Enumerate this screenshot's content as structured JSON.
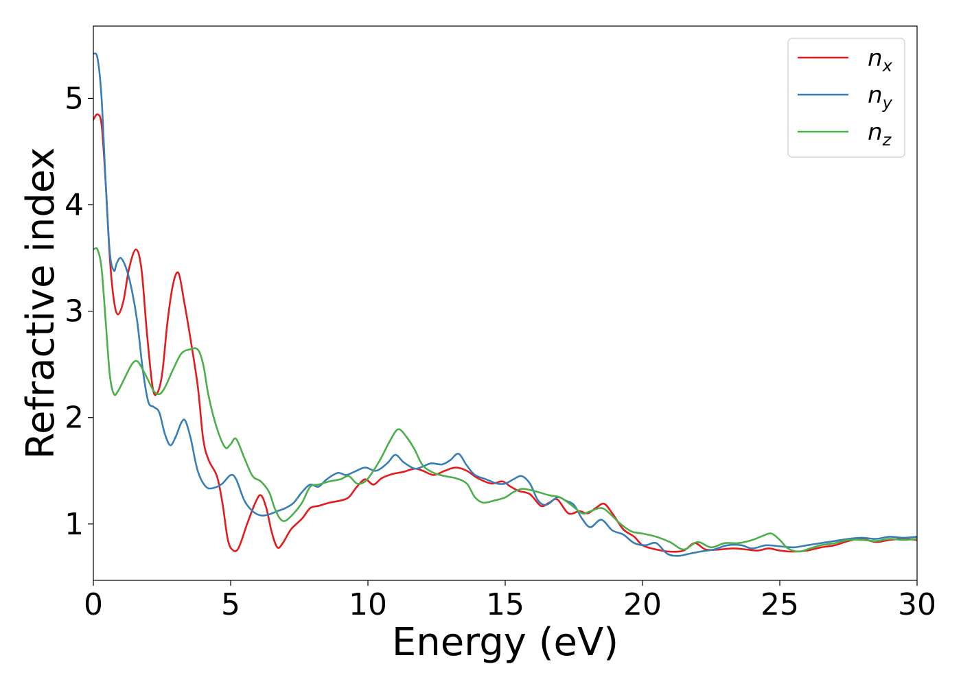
{
  "chart_data": {
    "type": "line",
    "title": "",
    "xlabel": "Energy (eV)",
    "ylabel": "Refractive index",
    "xlim": [
      0,
      30
    ],
    "ylim": [
      0.47,
      5.68
    ],
    "xticks": [
      0,
      5,
      10,
      15,
      20,
      25,
      30
    ],
    "yticks": [
      1,
      2,
      3,
      4,
      5
    ],
    "grid": false,
    "legend_position": "top-right",
    "series": [
      {
        "name": "n",
        "subscript": "x",
        "color": "#e41a1c",
        "points": [
          [
            0,
            4.8
          ],
          [
            0.15,
            4.85
          ],
          [
            0.3,
            4.75
          ],
          [
            0.45,
            4.2
          ],
          [
            0.6,
            3.5
          ],
          [
            0.75,
            3.1
          ],
          [
            0.9,
            2.97
          ],
          [
            1.1,
            3.1
          ],
          [
            1.3,
            3.4
          ],
          [
            1.55,
            3.58
          ],
          [
            1.75,
            3.4
          ],
          [
            1.95,
            2.8
          ],
          [
            2.15,
            2.3
          ],
          [
            2.3,
            2.22
          ],
          [
            2.5,
            2.4
          ],
          [
            2.7,
            2.9
          ],
          [
            2.9,
            3.25
          ],
          [
            3.1,
            3.36
          ],
          [
            3.3,
            3.1
          ],
          [
            3.5,
            2.8
          ],
          [
            3.8,
            2.3
          ],
          [
            4.0,
            1.8
          ],
          [
            4.2,
            1.6
          ],
          [
            4.5,
            1.45
          ],
          [
            4.7,
            1.2
          ],
          [
            4.9,
            0.85
          ],
          [
            5.1,
            0.75
          ],
          [
            5.3,
            0.78
          ],
          [
            5.6,
            1.0
          ],
          [
            5.9,
            1.2
          ],
          [
            6.1,
            1.27
          ],
          [
            6.3,
            1.15
          ],
          [
            6.5,
            0.92
          ],
          [
            6.7,
            0.78
          ],
          [
            6.9,
            0.82
          ],
          [
            7.2,
            0.95
          ],
          [
            7.6,
            1.05
          ],
          [
            7.9,
            1.15
          ],
          [
            8.2,
            1.17
          ],
          [
            8.6,
            1.2
          ],
          [
            9.0,
            1.22
          ],
          [
            9.3,
            1.25
          ],
          [
            9.6,
            1.35
          ],
          [
            9.9,
            1.42
          ],
          [
            10.2,
            1.37
          ],
          [
            10.5,
            1.43
          ],
          [
            10.9,
            1.47
          ],
          [
            11.3,
            1.49
          ],
          [
            11.7,
            1.52
          ],
          [
            12.0,
            1.5
          ],
          [
            12.4,
            1.46
          ],
          [
            12.8,
            1.5
          ],
          [
            13.2,
            1.53
          ],
          [
            13.6,
            1.5
          ],
          [
            14.0,
            1.43
          ],
          [
            14.5,
            1.38
          ],
          [
            14.9,
            1.4
          ],
          [
            15.2,
            1.35
          ],
          [
            15.5,
            1.31
          ],
          [
            15.9,
            1.28
          ],
          [
            16.3,
            1.17
          ],
          [
            16.6,
            1.2
          ],
          [
            16.9,
            1.23
          ],
          [
            17.3,
            1.1
          ],
          [
            17.7,
            1.12
          ],
          [
            18.0,
            1.1
          ],
          [
            18.3,
            1.15
          ],
          [
            18.6,
            1.19
          ],
          [
            18.9,
            1.1
          ],
          [
            19.3,
            0.95
          ],
          [
            19.7,
            0.88
          ],
          [
            20.0,
            0.8
          ],
          [
            20.5,
            0.76
          ],
          [
            21.0,
            0.74
          ],
          [
            21.5,
            0.75
          ],
          [
            21.9,
            0.82
          ],
          [
            22.3,
            0.76
          ],
          [
            22.8,
            0.76
          ],
          [
            23.3,
            0.77
          ],
          [
            23.8,
            0.76
          ],
          [
            24.2,
            0.75
          ],
          [
            24.6,
            0.77
          ],
          [
            25.0,
            0.75
          ],
          [
            25.5,
            0.74
          ],
          [
            26.0,
            0.75
          ],
          [
            26.5,
            0.78
          ],
          [
            27.0,
            0.8
          ],
          [
            27.5,
            0.84
          ],
          [
            28.0,
            0.86
          ],
          [
            28.5,
            0.83
          ],
          [
            29.0,
            0.85
          ],
          [
            29.5,
            0.86
          ],
          [
            30.0,
            0.85
          ]
        ]
      },
      {
        "name": "n",
        "subscript": "y",
        "color": "#377eb8",
        "points": [
          [
            0,
            5.42
          ],
          [
            0.15,
            5.38
          ],
          [
            0.3,
            5.0
          ],
          [
            0.45,
            4.2
          ],
          [
            0.6,
            3.55
          ],
          [
            0.75,
            3.38
          ],
          [
            0.85,
            3.45
          ],
          [
            1.0,
            3.5
          ],
          [
            1.2,
            3.4
          ],
          [
            1.4,
            3.2
          ],
          [
            1.6,
            2.9
          ],
          [
            1.8,
            2.45
          ],
          [
            2.0,
            2.15
          ],
          [
            2.2,
            2.1
          ],
          [
            2.4,
            2.05
          ],
          [
            2.6,
            1.85
          ],
          [
            2.8,
            1.74
          ],
          [
            3.0,
            1.82
          ],
          [
            3.2,
            1.95
          ],
          [
            3.35,
            1.97
          ],
          [
            3.55,
            1.8
          ],
          [
            3.8,
            1.5
          ],
          [
            4.1,
            1.35
          ],
          [
            4.4,
            1.34
          ],
          [
            4.7,
            1.38
          ],
          [
            5.0,
            1.46
          ],
          [
            5.2,
            1.42
          ],
          [
            5.5,
            1.22
          ],
          [
            5.8,
            1.12
          ],
          [
            6.1,
            1.08
          ],
          [
            6.4,
            1.09
          ],
          [
            6.7,
            1.12
          ],
          [
            7.0,
            1.15
          ],
          [
            7.3,
            1.2
          ],
          [
            7.6,
            1.3
          ],
          [
            7.9,
            1.37
          ],
          [
            8.2,
            1.35
          ],
          [
            8.5,
            1.42
          ],
          [
            8.9,
            1.48
          ],
          [
            9.2,
            1.46
          ],
          [
            9.5,
            1.49
          ],
          [
            9.9,
            1.53
          ],
          [
            10.3,
            1.5
          ],
          [
            10.7,
            1.57
          ],
          [
            11.0,
            1.65
          ],
          [
            11.3,
            1.58
          ],
          [
            11.7,
            1.52
          ],
          [
            12.0,
            1.54
          ],
          [
            12.3,
            1.57
          ],
          [
            12.7,
            1.56
          ],
          [
            13.0,
            1.6
          ],
          [
            13.3,
            1.66
          ],
          [
            13.6,
            1.55
          ],
          [
            13.9,
            1.46
          ],
          [
            14.3,
            1.42
          ],
          [
            14.7,
            1.38
          ],
          [
            15.0,
            1.38
          ],
          [
            15.3,
            1.42
          ],
          [
            15.6,
            1.45
          ],
          [
            15.9,
            1.38
          ],
          [
            16.2,
            1.22
          ],
          [
            16.5,
            1.18
          ],
          [
            16.9,
            1.25
          ],
          [
            17.2,
            1.22
          ],
          [
            17.5,
            1.18
          ],
          [
            17.8,
            1.05
          ],
          [
            18.1,
            0.97
          ],
          [
            18.5,
            1.04
          ],
          [
            18.9,
            0.94
          ],
          [
            19.3,
            0.9
          ],
          [
            19.7,
            0.82
          ],
          [
            20.1,
            0.8
          ],
          [
            20.5,
            0.82
          ],
          [
            20.9,
            0.72
          ],
          [
            21.3,
            0.7
          ],
          [
            21.7,
            0.72
          ],
          [
            22.1,
            0.74
          ],
          [
            22.6,
            0.76
          ],
          [
            23.1,
            0.8
          ],
          [
            23.6,
            0.8
          ],
          [
            24.0,
            0.77
          ],
          [
            24.5,
            0.8
          ],
          [
            25.0,
            0.79
          ],
          [
            25.5,
            0.78
          ],
          [
            26.0,
            0.8
          ],
          [
            26.5,
            0.82
          ],
          [
            27.0,
            0.84
          ],
          [
            27.5,
            0.86
          ],
          [
            28.0,
            0.87
          ],
          [
            28.5,
            0.86
          ],
          [
            29.0,
            0.88
          ],
          [
            29.5,
            0.87
          ],
          [
            30.0,
            0.88
          ]
        ]
      },
      {
        "name": "n",
        "subscript": "z",
        "color": "#4daf4a",
        "points": [
          [
            0,
            3.58
          ],
          [
            0.15,
            3.58
          ],
          [
            0.3,
            3.4
          ],
          [
            0.45,
            2.9
          ],
          [
            0.6,
            2.4
          ],
          [
            0.75,
            2.22
          ],
          [
            0.9,
            2.25
          ],
          [
            1.1,
            2.35
          ],
          [
            1.4,
            2.5
          ],
          [
            1.6,
            2.53
          ],
          [
            1.8,
            2.45
          ],
          [
            2.0,
            2.35
          ],
          [
            2.2,
            2.25
          ],
          [
            2.4,
            2.22
          ],
          [
            2.6,
            2.28
          ],
          [
            2.9,
            2.45
          ],
          [
            3.2,
            2.6
          ],
          [
            3.5,
            2.64
          ],
          [
            3.8,
            2.64
          ],
          [
            4.0,
            2.5
          ],
          [
            4.2,
            2.2
          ],
          [
            4.5,
            1.9
          ],
          [
            4.8,
            1.72
          ],
          [
            5.0,
            1.75
          ],
          [
            5.2,
            1.8
          ],
          [
            5.5,
            1.62
          ],
          [
            5.8,
            1.45
          ],
          [
            6.1,
            1.4
          ],
          [
            6.4,
            1.3
          ],
          [
            6.6,
            1.15
          ],
          [
            6.8,
            1.05
          ],
          [
            7.0,
            1.03
          ],
          [
            7.3,
            1.1
          ],
          [
            7.6,
            1.2
          ],
          [
            7.9,
            1.35
          ],
          [
            8.2,
            1.37
          ],
          [
            8.6,
            1.4
          ],
          [
            9.0,
            1.42
          ],
          [
            9.3,
            1.45
          ],
          [
            9.6,
            1.38
          ],
          [
            9.9,
            1.4
          ],
          [
            10.2,
            1.5
          ],
          [
            10.5,
            1.63
          ],
          [
            10.8,
            1.78
          ],
          [
            11.1,
            1.89
          ],
          [
            11.4,
            1.82
          ],
          [
            11.7,
            1.7
          ],
          [
            12.0,
            1.55
          ],
          [
            12.4,
            1.48
          ],
          [
            12.8,
            1.45
          ],
          [
            13.2,
            1.43
          ],
          [
            13.6,
            1.38
          ],
          [
            13.9,
            1.25
          ],
          [
            14.2,
            1.2
          ],
          [
            14.6,
            1.22
          ],
          [
            15.0,
            1.25
          ],
          [
            15.3,
            1.3
          ],
          [
            15.6,
            1.33
          ],
          [
            15.9,
            1.32
          ],
          [
            16.2,
            1.3
          ],
          [
            16.6,
            1.27
          ],
          [
            17.0,
            1.25
          ],
          [
            17.4,
            1.18
          ],
          [
            17.8,
            1.1
          ],
          [
            18.1,
            1.12
          ],
          [
            18.5,
            1.15
          ],
          [
            18.8,
            1.1
          ],
          [
            19.2,
            1.0
          ],
          [
            19.6,
            0.93
          ],
          [
            20.0,
            0.91
          ],
          [
            20.5,
            0.88
          ],
          [
            21.0,
            0.83
          ],
          [
            21.5,
            0.76
          ],
          [
            22.0,
            0.83
          ],
          [
            22.5,
            0.78
          ],
          [
            23.0,
            0.82
          ],
          [
            23.5,
            0.82
          ],
          [
            24.0,
            0.85
          ],
          [
            24.4,
            0.89
          ],
          [
            24.7,
            0.91
          ],
          [
            25.0,
            0.85
          ],
          [
            25.3,
            0.77
          ],
          [
            25.7,
            0.74
          ],
          [
            26.1,
            0.77
          ],
          [
            26.5,
            0.8
          ],
          [
            27.0,
            0.82
          ],
          [
            27.5,
            0.85
          ],
          [
            28.0,
            0.85
          ],
          [
            28.5,
            0.84
          ],
          [
            29.0,
            0.86
          ],
          [
            29.5,
            0.85
          ],
          [
            30.0,
            0.86
          ]
        ]
      }
    ]
  }
}
